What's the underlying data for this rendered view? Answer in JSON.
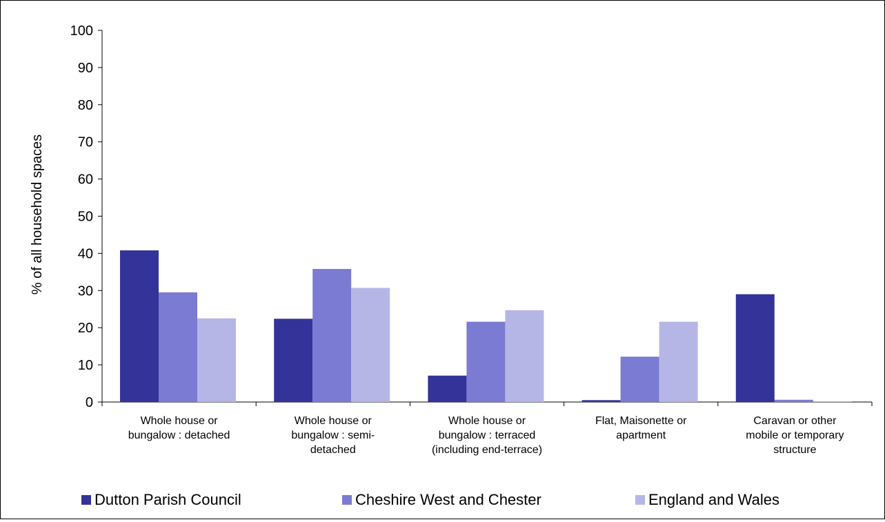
{
  "chart_data": {
    "type": "bar",
    "title": "",
    "xlabel": "",
    "ylabel": "% of all household spaces",
    "ylim": [
      0,
      100
    ],
    "yticks": [
      0,
      10,
      20,
      30,
      40,
      50,
      60,
      70,
      80,
      90,
      100
    ],
    "grid": false,
    "legend_position": "bottom",
    "categories": [
      [
        "Whole house or",
        "bungalow : detached"
      ],
      [
        "Whole house or",
        "bungalow : semi-",
        "detached"
      ],
      [
        "Whole house or",
        "bungalow : terraced",
        "(including end-terrace)"
      ],
      [
        "Flat, Maisonette or",
        "apartment"
      ],
      [
        "Caravan or other",
        "mobile or temporary",
        "structure"
      ]
    ],
    "series": [
      {
        "name": "Dutton Parish Council",
        "color": "#333399",
        "values": [
          40.8,
          22.4,
          7.1,
          0.5,
          29.0
        ]
      },
      {
        "name": "Cheshire West and Chester",
        "color": "#7B7BD3",
        "values": [
          29.5,
          35.8,
          21.6,
          12.2,
          0.6
        ]
      },
      {
        "name": "England and Wales",
        "color": "#B6B6E6",
        "values": [
          22.5,
          30.7,
          24.7,
          21.6,
          0.2
        ]
      }
    ]
  }
}
